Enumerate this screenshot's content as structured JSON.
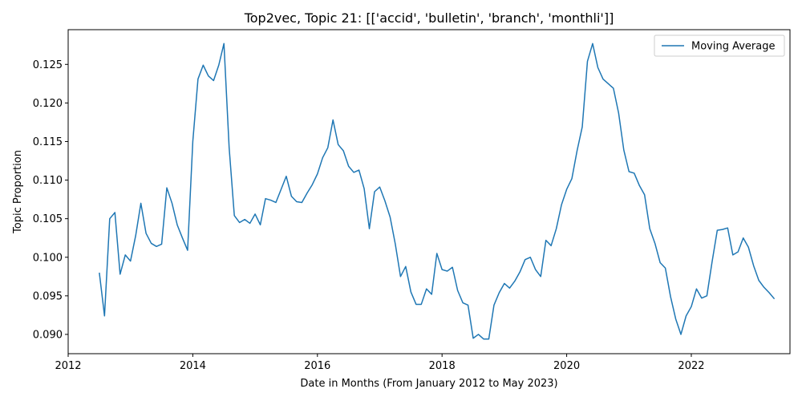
{
  "chart_data": {
    "type": "line",
    "title": "Top2vec, Topic 21: [['accid', 'bulletin', 'branch', 'monthli']]",
    "xlabel": "Date in Months (From January 2012 to May 2023)",
    "ylabel": "Topic Proportion",
    "xlim": [
      "2012-01",
      "2023-08"
    ],
    "ylim": [
      0.0875,
      0.1295
    ],
    "x_ticks": [
      "2012",
      "2014",
      "2016",
      "2018",
      "2020",
      "2022"
    ],
    "y_ticks": [
      "0.090",
      "0.095",
      "0.100",
      "0.105",
      "0.110",
      "0.115",
      "0.120",
      "0.125"
    ],
    "legend_position": "top-right",
    "series_color": "#1f77b4",
    "series": [
      {
        "name": "Moving Average",
        "x": [
          "2012-07",
          "2012-08",
          "2012-09",
          "2012-10",
          "2012-11",
          "2012-12",
          "2013-01",
          "2013-02",
          "2013-03",
          "2013-04",
          "2013-05",
          "2013-06",
          "2013-07",
          "2013-08",
          "2013-09",
          "2013-10",
          "2013-11",
          "2013-12",
          "2014-01",
          "2014-02",
          "2014-03",
          "2014-04",
          "2014-05",
          "2014-06",
          "2014-07",
          "2014-08",
          "2014-09",
          "2014-10",
          "2014-11",
          "2014-12",
          "2015-01",
          "2015-02",
          "2015-03",
          "2015-04",
          "2015-05",
          "2015-06",
          "2015-07",
          "2015-08",
          "2015-09",
          "2015-10",
          "2015-11",
          "2015-12",
          "2016-01",
          "2016-02",
          "2016-03",
          "2016-04",
          "2016-05",
          "2016-06",
          "2016-07",
          "2016-08",
          "2016-09",
          "2016-10",
          "2016-11",
          "2016-12",
          "2017-01",
          "2017-02",
          "2017-03",
          "2017-04",
          "2017-05",
          "2017-06",
          "2017-07",
          "2017-08",
          "2017-09",
          "2017-10",
          "2017-11",
          "2017-12",
          "2018-01",
          "2018-02",
          "2018-03",
          "2018-04",
          "2018-05",
          "2018-06",
          "2018-07",
          "2018-08",
          "2018-09",
          "2018-10",
          "2018-11",
          "2018-12",
          "2019-01",
          "2019-02",
          "2019-03",
          "2019-04",
          "2019-05",
          "2019-06",
          "2019-07",
          "2019-08",
          "2019-09",
          "2019-10",
          "2019-11",
          "2019-12",
          "2020-01",
          "2020-02",
          "2020-03",
          "2020-04",
          "2020-05",
          "2020-06",
          "2020-07",
          "2020-08",
          "2020-09",
          "2020-10",
          "2020-11",
          "2020-12",
          "2021-01",
          "2021-02",
          "2021-03",
          "2021-04",
          "2021-05",
          "2021-06",
          "2021-07",
          "2021-08",
          "2021-09",
          "2021-10",
          "2021-11",
          "2021-12",
          "2022-01",
          "2022-02",
          "2022-03",
          "2022-04",
          "2022-05",
          "2022-06",
          "2022-07",
          "2022-08",
          "2022-09",
          "2022-10",
          "2022-11",
          "2022-12",
          "2023-01",
          "2023-02",
          "2023-03",
          "2023-04",
          "2023-05"
        ],
        "y": [
          0.098,
          0.0924,
          0.105,
          0.1058,
          0.0978,
          0.1003,
          0.0995,
          0.1028,
          0.107,
          0.1031,
          0.1018,
          0.1014,
          0.1017,
          0.109,
          0.107,
          0.1042,
          0.1025,
          0.1009,
          0.115,
          0.1231,
          0.1249,
          0.1235,
          0.1229,
          0.1249,
          0.1277,
          0.1142,
          0.1054,
          0.1045,
          0.1049,
          0.1044,
          0.1056,
          0.1042,
          0.1076,
          0.1074,
          0.1071,
          0.1088,
          0.1105,
          0.1079,
          0.1072,
          0.1071,
          0.1083,
          0.1094,
          0.1108,
          0.1129,
          0.1142,
          0.1178,
          0.1146,
          0.1138,
          0.1118,
          0.111,
          0.1113,
          0.1089,
          0.1037,
          0.1085,
          0.1091,
          0.1073,
          0.1052,
          0.1017,
          0.0975,
          0.0988,
          0.0955,
          0.0939,
          0.0939,
          0.0959,
          0.0952,
          0.1005,
          0.0984,
          0.0982,
          0.0987,
          0.0957,
          0.0941,
          0.0938,
          0.0895,
          0.09,
          0.0894,
          0.0894,
          0.0938,
          0.0954,
          0.0966,
          0.096,
          0.0969,
          0.0981,
          0.0997,
          0.1,
          0.0984,
          0.0975,
          0.1022,
          0.1015,
          0.1037,
          0.1068,
          0.1088,
          0.1102,
          0.1138,
          0.1169,
          0.1254,
          0.1277,
          0.1246,
          0.1231,
          0.1225,
          0.1219,
          0.1187,
          0.1139,
          0.1111,
          0.1109,
          0.1093,
          0.1081,
          0.1037,
          0.1018,
          0.0993,
          0.0986,
          0.0949,
          0.092,
          0.09,
          0.0924,
          0.0936,
          0.0959,
          0.0947,
          0.095,
          0.0994,
          0.1035,
          0.1036,
          0.1038,
          0.1003,
          0.1007,
          0.1025,
          0.1013,
          0.0989,
          0.097,
          0.0961,
          0.0954,
          0.0946
        ]
      }
    ]
  }
}
